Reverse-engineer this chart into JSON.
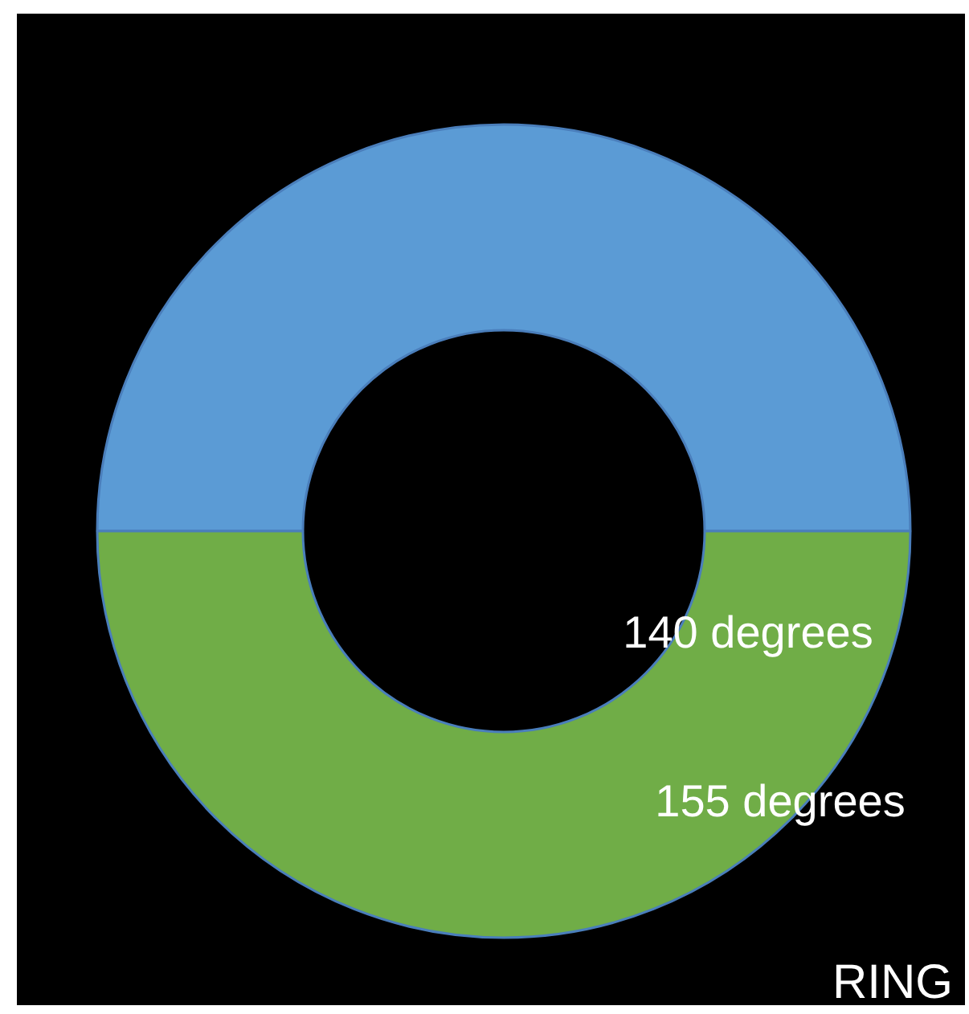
{
  "chart_data": {
    "type": "donut",
    "categories": [
      null,
      null
    ],
    "values": [
      50,
      50
    ],
    "colors": [
      "#5b9bd5",
      "#70ad47"
    ],
    "annotations": [
      "140 degrees",
      "155 degrees",
      "RING"
    ]
  }
}
